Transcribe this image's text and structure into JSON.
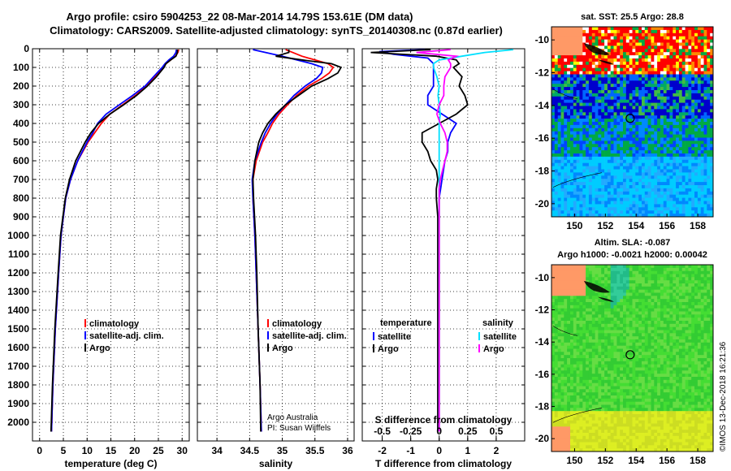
{
  "title": {
    "line1": "Argo profile: csiro 5904253_22 08-Mar-2014 14.79S 153.61E (DM data)",
    "line2": "Climatology: CARS2009. Satellite-adjusted climatology: synTS_20140308.nc (0.87d earlier)"
  },
  "credit": {
    "line1": "Argo Australia",
    "line2": "PI: Susan Wijffels"
  },
  "watermark": "©IMOS 13-Dec-2018 16:21:36",
  "colors": {
    "argo": "#000000",
    "climatology": "#ff0000",
    "satellite": "#0000ff",
    "s_satellite": "#00e0ff",
    "s_argo": "#ff00ff"
  },
  "chart_data": [
    {
      "type": "line",
      "id": "temperature",
      "xlabel": "temperature (deg C)",
      "ylim": [
        2100,
        0
      ],
      "xlim": [
        -1.5,
        31.5
      ],
      "xticks": [
        0,
        5,
        10,
        15,
        20,
        25,
        30
      ],
      "yticks": [
        0,
        100,
        200,
        300,
        400,
        500,
        600,
        700,
        800,
        900,
        1000,
        1100,
        1200,
        1300,
        1400,
        1500,
        1600,
        1700,
        1800,
        1900,
        2000
      ],
      "legend": [
        "climatology",
        "satellite-adj. clim.",
        "Argo"
      ],
      "series": [
        {
          "name": "climatology",
          "color": "#ff0000",
          "depth": [
            5,
            20,
            40,
            60,
            80,
            100,
            150,
            200,
            250,
            300,
            350,
            400,
            450,
            500,
            600,
            700,
            800,
            1000,
            1200,
            1500,
            1800,
            2050
          ],
          "values": [
            29.3,
            29.1,
            28.6,
            27.6,
            26.6,
            26.0,
            24.2,
            22.4,
            20.2,
            17.5,
            14.8,
            13.0,
            11.6,
            10.2,
            8.0,
            6.5,
            5.5,
            4.5,
            4.0,
            3.3,
            2.8,
            2.5
          ]
        },
        {
          "name": "satellite-adj. clim.",
          "color": "#0000ff",
          "depth": [
            5,
            20,
            40,
            60,
            80,
            100,
            150,
            200,
            250,
            300,
            350,
            400,
            450,
            500,
            600,
            700,
            800,
            1000,
            1200,
            1500,
            1800,
            2050
          ],
          "values": [
            28.8,
            28.7,
            28.2,
            27.2,
            26.4,
            25.8,
            24.0,
            22.2,
            19.6,
            16.8,
            14.0,
            12.2,
            11.2,
            10.0,
            8.0,
            6.5,
            5.5,
            4.5,
            4.0,
            3.3,
            2.8,
            2.5
          ]
        },
        {
          "name": "Argo",
          "color": "#000000",
          "depth": [
            5,
            20,
            40,
            60,
            80,
            100,
            150,
            200,
            250,
            300,
            350,
            400,
            450,
            500,
            600,
            700,
            800,
            1000,
            1200,
            1500,
            1800,
            2050
          ],
          "values": [
            29.0,
            29.0,
            28.7,
            27.6,
            26.6,
            26.2,
            24.6,
            22.7,
            20.4,
            17.7,
            14.8,
            12.4,
            10.8,
            9.6,
            7.6,
            6.3,
            5.4,
            4.4,
            3.9,
            3.2,
            2.7,
            2.4
          ]
        }
      ]
    },
    {
      "type": "line",
      "id": "salinity",
      "xlabel": "salinity",
      "ylim": [
        2100,
        0
      ],
      "xlim": [
        33.7,
        36.1
      ],
      "xticks": [
        34,
        34.5,
        35,
        35.5,
        36
      ],
      "legend": [
        "climatology",
        "satellite-adj. clim.",
        "Argo"
      ],
      "series": [
        {
          "name": "climatology",
          "color": "#ff0000",
          "depth": [
            5,
            40,
            80,
            100,
            130,
            160,
            200,
            250,
            300,
            350,
            400,
            450,
            500,
            600,
            700,
            800,
            1000,
            1200,
            1500,
            1800,
            2050
          ],
          "values": [
            35.05,
            35.3,
            35.7,
            35.78,
            35.72,
            35.6,
            35.4,
            35.22,
            35.08,
            34.95,
            34.85,
            34.78,
            34.7,
            34.6,
            34.55,
            34.55,
            34.58,
            34.6,
            34.63,
            34.66,
            34.68
          ]
        },
        {
          "name": "satellite-adj. clim.",
          "color": "#0000ff",
          "depth": [
            5,
            40,
            80,
            100,
            130,
            160,
            200,
            250,
            300,
            350,
            400,
            450,
            500,
            600,
            700,
            800,
            1000,
            1200,
            1500,
            1800,
            2050
          ],
          "values": [
            34.55,
            35.0,
            35.45,
            35.62,
            35.6,
            35.52,
            35.35,
            35.18,
            35.05,
            34.92,
            34.82,
            34.74,
            34.68,
            34.58,
            34.54,
            34.55,
            34.58,
            34.6,
            34.63,
            34.66,
            34.68
          ]
        },
        {
          "name": "Argo",
          "color": "#000000",
          "depth": [
            5,
            20,
            40,
            60,
            80,
            100,
            130,
            160,
            200,
            250,
            300,
            350,
            400,
            450,
            500,
            600,
            700,
            800,
            1000,
            1200,
            1500,
            1800,
            2050
          ],
          "values": [
            35.1,
            35.1,
            34.9,
            35.3,
            35.75,
            35.9,
            35.85,
            35.7,
            35.45,
            35.25,
            35.05,
            34.9,
            34.78,
            34.7,
            34.64,
            34.58,
            34.55,
            34.56,
            34.59,
            34.61,
            34.63,
            34.66,
            34.67
          ]
        }
      ]
    },
    {
      "type": "line",
      "id": "differences",
      "xlabel": "T difference from climatology",
      "xlabel_top": "S difference from climatology",
      "ylim": [
        2100,
        0
      ],
      "xlim": [
        -2.7,
        3.0
      ],
      "xticks": [
        -2,
        -1,
        0,
        1,
        2
      ],
      "xticks_top_labels": [
        "-0.5",
        "-0.25",
        "0",
        "0.25",
        "0.5"
      ],
      "xticks_top_values": [
        -0.5,
        -0.25,
        0,
        0.25,
        0.5
      ],
      "legend_left_title": "temperature",
      "legend_right_title": "salinity",
      "legend_left": [
        "satellite",
        "Argo"
      ],
      "legend_right": [
        "satellite",
        "Argo"
      ],
      "series": [
        {
          "name": "temperature satellite",
          "color": "#0000ff",
          "depth": [
            5,
            15,
            30,
            50,
            80,
            100,
            150,
            200,
            250,
            300,
            350,
            400,
            450,
            500,
            550,
            600,
            650,
            700,
            750,
            800,
            900,
            1000,
            1200,
            1500,
            1800,
            2050
          ],
          "values": [
            -0.5,
            -2.1,
            -1.6,
            -0.4,
            -0.2,
            -0.2,
            -0.2,
            -0.2,
            -0.4,
            -0.4,
            0.1,
            0.6,
            0.4,
            0.3,
            0.3,
            0.2,
            0.15,
            0.1,
            0.05,
            0.0,
            0.0,
            0.0,
            0.0,
            0.0,
            0.0,
            0.0
          ]
        },
        {
          "name": "temperature Argo",
          "color": "#000000",
          "depth": [
            5,
            20,
            40,
            60,
            80,
            100,
            150,
            200,
            250,
            300,
            350,
            400,
            450,
            500,
            550,
            600,
            650,
            700,
            750,
            800,
            900,
            1000,
            1200,
            1500,
            1800,
            2050
          ],
          "values": [
            -0.3,
            -2.4,
            -0.1,
            0.6,
            0.7,
            0.5,
            0.8,
            0.7,
            0.9,
            1.0,
            0.6,
            0.0,
            -0.6,
            -0.6,
            -0.4,
            -0.3,
            -0.1,
            -0.05,
            -0.1,
            -0.1,
            -0.05,
            -0.05,
            -0.05,
            -0.05,
            -0.05,
            -0.05
          ]
        },
        {
          "name": "salinity satellite",
          "color": "#00e0ff",
          "depth": [
            5,
            20,
            40,
            60,
            80,
            100,
            150,
            200,
            250,
            300,
            350,
            400,
            500,
            600,
            700,
            800,
            900,
            1000,
            1200,
            1500,
            1800,
            2050
          ],
          "values": [
            0.65,
            0.4,
            0.2,
            0.0,
            -0.05,
            -0.05,
            -0.02,
            0.0,
            -0.01,
            0.0,
            0.01,
            0.0,
            0.0,
            0.0,
            0.0,
            0.0,
            0.0,
            0.0,
            0.0,
            0.0,
            0.0,
            0.0
          ]
        },
        {
          "name": "salinity Argo",
          "color": "#ff00ff",
          "depth": [
            5,
            20,
            40,
            60,
            80,
            100,
            150,
            200,
            250,
            300,
            350,
            400,
            450,
            500,
            550,
            600,
            650,
            700,
            750,
            800,
            900,
            1000,
            1200,
            1500,
            1800,
            2050
          ],
          "values": [
            0.1,
            -0.2,
            0.15,
            0.08,
            0.1,
            0.1,
            0.05,
            0.04,
            0.04,
            0.0,
            -0.02,
            0.01,
            0.05,
            0.07,
            0.07,
            0.05,
            0.03,
            0.01,
            0.0,
            0.0,
            0.0,
            0.0,
            0.0,
            0.0,
            0.0,
            0.0
          ]
        }
      ]
    },
    {
      "type": "heatmap",
      "id": "sst_map",
      "title": "sat. SST: 25.5 Argo: 28.8",
      "xlim": [
        148.5,
        159.0
      ],
      "ylim": [
        -20.8,
        -9.2
      ],
      "xticks": [
        150,
        152,
        154,
        156,
        158
      ],
      "yticks": [
        -10,
        -12,
        -14,
        -16,
        -18,
        -20
      ],
      "marker": {
        "lon": 153.61,
        "lat": -14.79
      }
    },
    {
      "type": "heatmap",
      "id": "sla_map",
      "title_line1": "Altim. SLA: -0.087",
      "title_line2": "Argo h1000: -0.0021 h2000: 0.00042",
      "xlim": [
        148.5,
        159.0
      ],
      "ylim": [
        -20.8,
        -9.2
      ],
      "xticks": [
        150,
        152,
        154,
        156,
        158
      ],
      "yticks": [
        -10,
        -12,
        -14,
        -16,
        -18,
        -20
      ],
      "marker": {
        "lon": 153.61,
        "lat": -14.79
      }
    }
  ]
}
